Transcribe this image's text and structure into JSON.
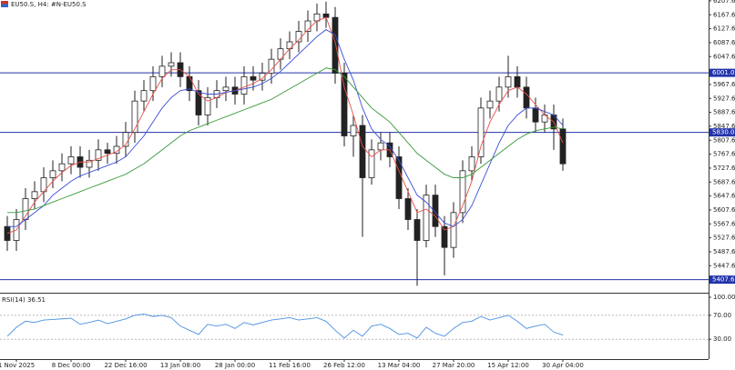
{
  "chart_data": [
    {
      "type": "candlestick",
      "title": "EU50.S, H4: #N-EU50.S",
      "categories": [
        null,
        "1 Nov 2025",
        null,
        null,
        null,
        null,
        null,
        "8 Dec 00:00",
        null,
        null,
        null,
        null,
        null,
        "22 Dec 16:00",
        null,
        null,
        null,
        null,
        null,
        "13 Jan 08:00",
        null,
        null,
        null,
        null,
        null,
        "28 Jan 00:00",
        null,
        null,
        null,
        null,
        null,
        "11 Feb 16:00",
        null,
        null,
        null,
        null,
        null,
        "26 Feb 12:00",
        null,
        null,
        null,
        null,
        null,
        "13 Mar 04:00",
        null,
        null,
        null,
        null,
        null,
        "27 Mar 20:00",
        null,
        null,
        null,
        null,
        null,
        "15 Apr 12:00",
        null,
        null,
        null,
        null,
        null,
        "30 Apr 04:00"
      ],
      "open": [
        5560,
        5520,
        5580,
        5640,
        5660,
        5700,
        5720,
        5740,
        5760,
        5730,
        5750,
        5780,
        5770,
        5790,
        5830,
        5920,
        5950,
        5990,
        6020,
        6030,
        5990,
        5950,
        5880,
        5930,
        5950,
        5960,
        5940,
        5990,
        5980,
        6000,
        6040,
        6070,
        6090,
        6120,
        6150,
        6170,
        6160,
        6000,
        5820,
        5850,
        5700,
        5780,
        5800,
        5760,
        5640,
        5580,
        5520,
        5650,
        5560,
        5500,
        5600,
        5720,
        5760,
        5900,
        5920,
        5960,
        5990,
        5960,
        5900,
        5860,
        5880,
        5840
      ],
      "high": [
        5590,
        5610,
        5670,
        5690,
        5730,
        5750,
        5770,
        5790,
        5790,
        5780,
        5810,
        5800,
        5820,
        5860,
        5950,
        5980,
        6020,
        6050,
        6060,
        6060,
        6020,
        5980,
        5960,
        5980,
        5990,
        5990,
        6020,
        6020,
        6030,
        6070,
        6100,
        6120,
        6150,
        6180,
        6200,
        6205,
        6190,
        6030,
        5880,
        5880,
        5810,
        5830,
        5830,
        5790,
        5670,
        5610,
        5680,
        5680,
        5590,
        5630,
        5750,
        5790,
        5930,
        5950,
        5990,
        6050,
        6020,
        5990,
        5930,
        5910,
        5910,
        5870
      ],
      "low": [
        5490,
        5490,
        5550,
        5610,
        5630,
        5670,
        5690,
        5710,
        5700,
        5700,
        5720,
        5740,
        5740,
        5760,
        5800,
        5890,
        5920,
        5960,
        5990,
        5960,
        5920,
        5850,
        5850,
        5900,
        5920,
        5910,
        5910,
        5950,
        5950,
        5970,
        6010,
        6040,
        6060,
        6090,
        6120,
        6130,
        5970,
        5790,
        5760,
        5530,
        5680,
        5750,
        5730,
        5610,
        5550,
        5390,
        5500,
        5530,
        5420,
        5470,
        5570,
        5690,
        5740,
        5870,
        5890,
        5930,
        5930,
        5870,
        5830,
        5830,
        5780,
        5720
      ],
      "close": [
        5520,
        5580,
        5640,
        5660,
        5700,
        5720,
        5740,
        5760,
        5730,
        5750,
        5780,
        5770,
        5790,
        5830,
        5920,
        5950,
        5990,
        6020,
        6030,
        5990,
        5950,
        5880,
        5930,
        5950,
        5960,
        5940,
        5990,
        5980,
        6000,
        6040,
        6070,
        6090,
        6120,
        6150,
        6170,
        6160,
        6000,
        5820,
        5850,
        5700,
        5780,
        5800,
        5760,
        5640,
        5580,
        5520,
        5650,
        5560,
        5500,
        5600,
        5720,
        5760,
        5900,
        5920,
        5960,
        5990,
        5960,
        5900,
        5860,
        5880,
        5840,
        5740
      ],
      "series": [
        {
          "color": "#e8504a",
          "values": [
            5540,
            5550,
            5590,
            5630,
            5660,
            5690,
            5715,
            5735,
            5745,
            5745,
            5755,
            5765,
            5775,
            5795,
            5840,
            5890,
            5940,
            5985,
            6010,
            6010,
            5990,
            5940,
            5920,
            5930,
            5945,
            5950,
            5960,
            5970,
            5985,
            6010,
            6040,
            6070,
            6095,
            6125,
            6150,
            6160,
            6090,
            5960,
            5880,
            5790,
            5760,
            5780,
            5780,
            5720,
            5660,
            5600,
            5610,
            5590,
            5550,
            5560,
            5620,
            5690,
            5790,
            5860,
            5910,
            5950,
            5960,
            5940,
            5910,
            5880,
            5860,
            5800
          ]
        },
        {
          "color": "#3b4fd6",
          "values": [
            5560,
            5560,
            5580,
            5600,
            5620,
            5650,
            5670,
            5690,
            5705,
            5715,
            5725,
            5735,
            5745,
            5760,
            5790,
            5820,
            5860,
            5900,
            5930,
            5950,
            5955,
            5945,
            5940,
            5940,
            5945,
            5950,
            5955,
            5960,
            5970,
            5985,
            6005,
            6030,
            6055,
            6080,
            6105,
            6125,
            6110,
            6040,
            5980,
            5900,
            5840,
            5810,
            5790,
            5750,
            5700,
            5650,
            5630,
            5600,
            5570,
            5560,
            5580,
            5620,
            5680,
            5740,
            5800,
            5850,
            5880,
            5900,
            5900,
            5890,
            5880,
            5850
          ]
        },
        {
          "color": "#3a9a3a",
          "values": [
            5600,
            5600,
            5605,
            5610,
            5620,
            5630,
            5640,
            5650,
            5660,
            5670,
            5680,
            5690,
            5700,
            5710,
            5725,
            5740,
            5760,
            5780,
            5800,
            5820,
            5835,
            5845,
            5855,
            5865,
            5875,
            5885,
            5895,
            5905,
            5915,
            5925,
            5940,
            5955,
            5970,
            5985,
            6000,
            6015,
            6010,
            5990,
            5960,
            5930,
            5900,
            5880,
            5860,
            5830,
            5800,
            5770,
            5750,
            5730,
            5710,
            5700,
            5700,
            5710,
            5730,
            5750,
            5770,
            5790,
            5810,
            5825,
            5835,
            5840,
            5845,
            5840
          ]
        }
      ],
      "levels": [
        {
          "value": 6001,
          "label": "6001.0"
        },
        {
          "value": 5830,
          "label": "5830.0"
        },
        {
          "value": 5407.6,
          "label": "5407.6"
        }
      ],
      "level_color": "#2233aa",
      "ylim": [
        5370,
        6210
      ],
      "yticks": [
        6207.6,
        6167.6,
        6127.6,
        6087.6,
        6047.6,
        5967.6,
        5927.6,
        5887.6,
        5847.6,
        5807.6,
        5767.6,
        5727.6,
        5687.6,
        5647.6,
        5607.6,
        5567.6,
        5527.6,
        5487.6,
        5447.6
      ]
    },
    {
      "type": "line",
      "title": "RSI(14) 36.51",
      "color": "#4a90e2",
      "values": [
        35,
        50,
        60,
        58,
        62,
        63,
        64,
        65,
        55,
        58,
        62,
        56,
        60,
        64,
        70,
        72,
        68,
        70,
        66,
        52,
        45,
        38,
        55,
        52,
        55,
        48,
        58,
        54,
        58,
        62,
        64,
        66,
        62,
        64,
        66,
        60,
        45,
        32,
        45,
        35,
        52,
        55,
        48,
        38,
        40,
        32,
        50,
        40,
        35,
        48,
        58,
        60,
        68,
        62,
        66,
        70,
        60,
        48,
        52,
        55,
        42,
        37
      ],
      "ylim": [
        0,
        100
      ],
      "yticks": [
        {
          "value": 100,
          "label": "100.00"
        },
        {
          "value": 70,
          "label": "70.00"
        },
        {
          "value": 30,
          "label": "30.00"
        }
      ]
    }
  ]
}
